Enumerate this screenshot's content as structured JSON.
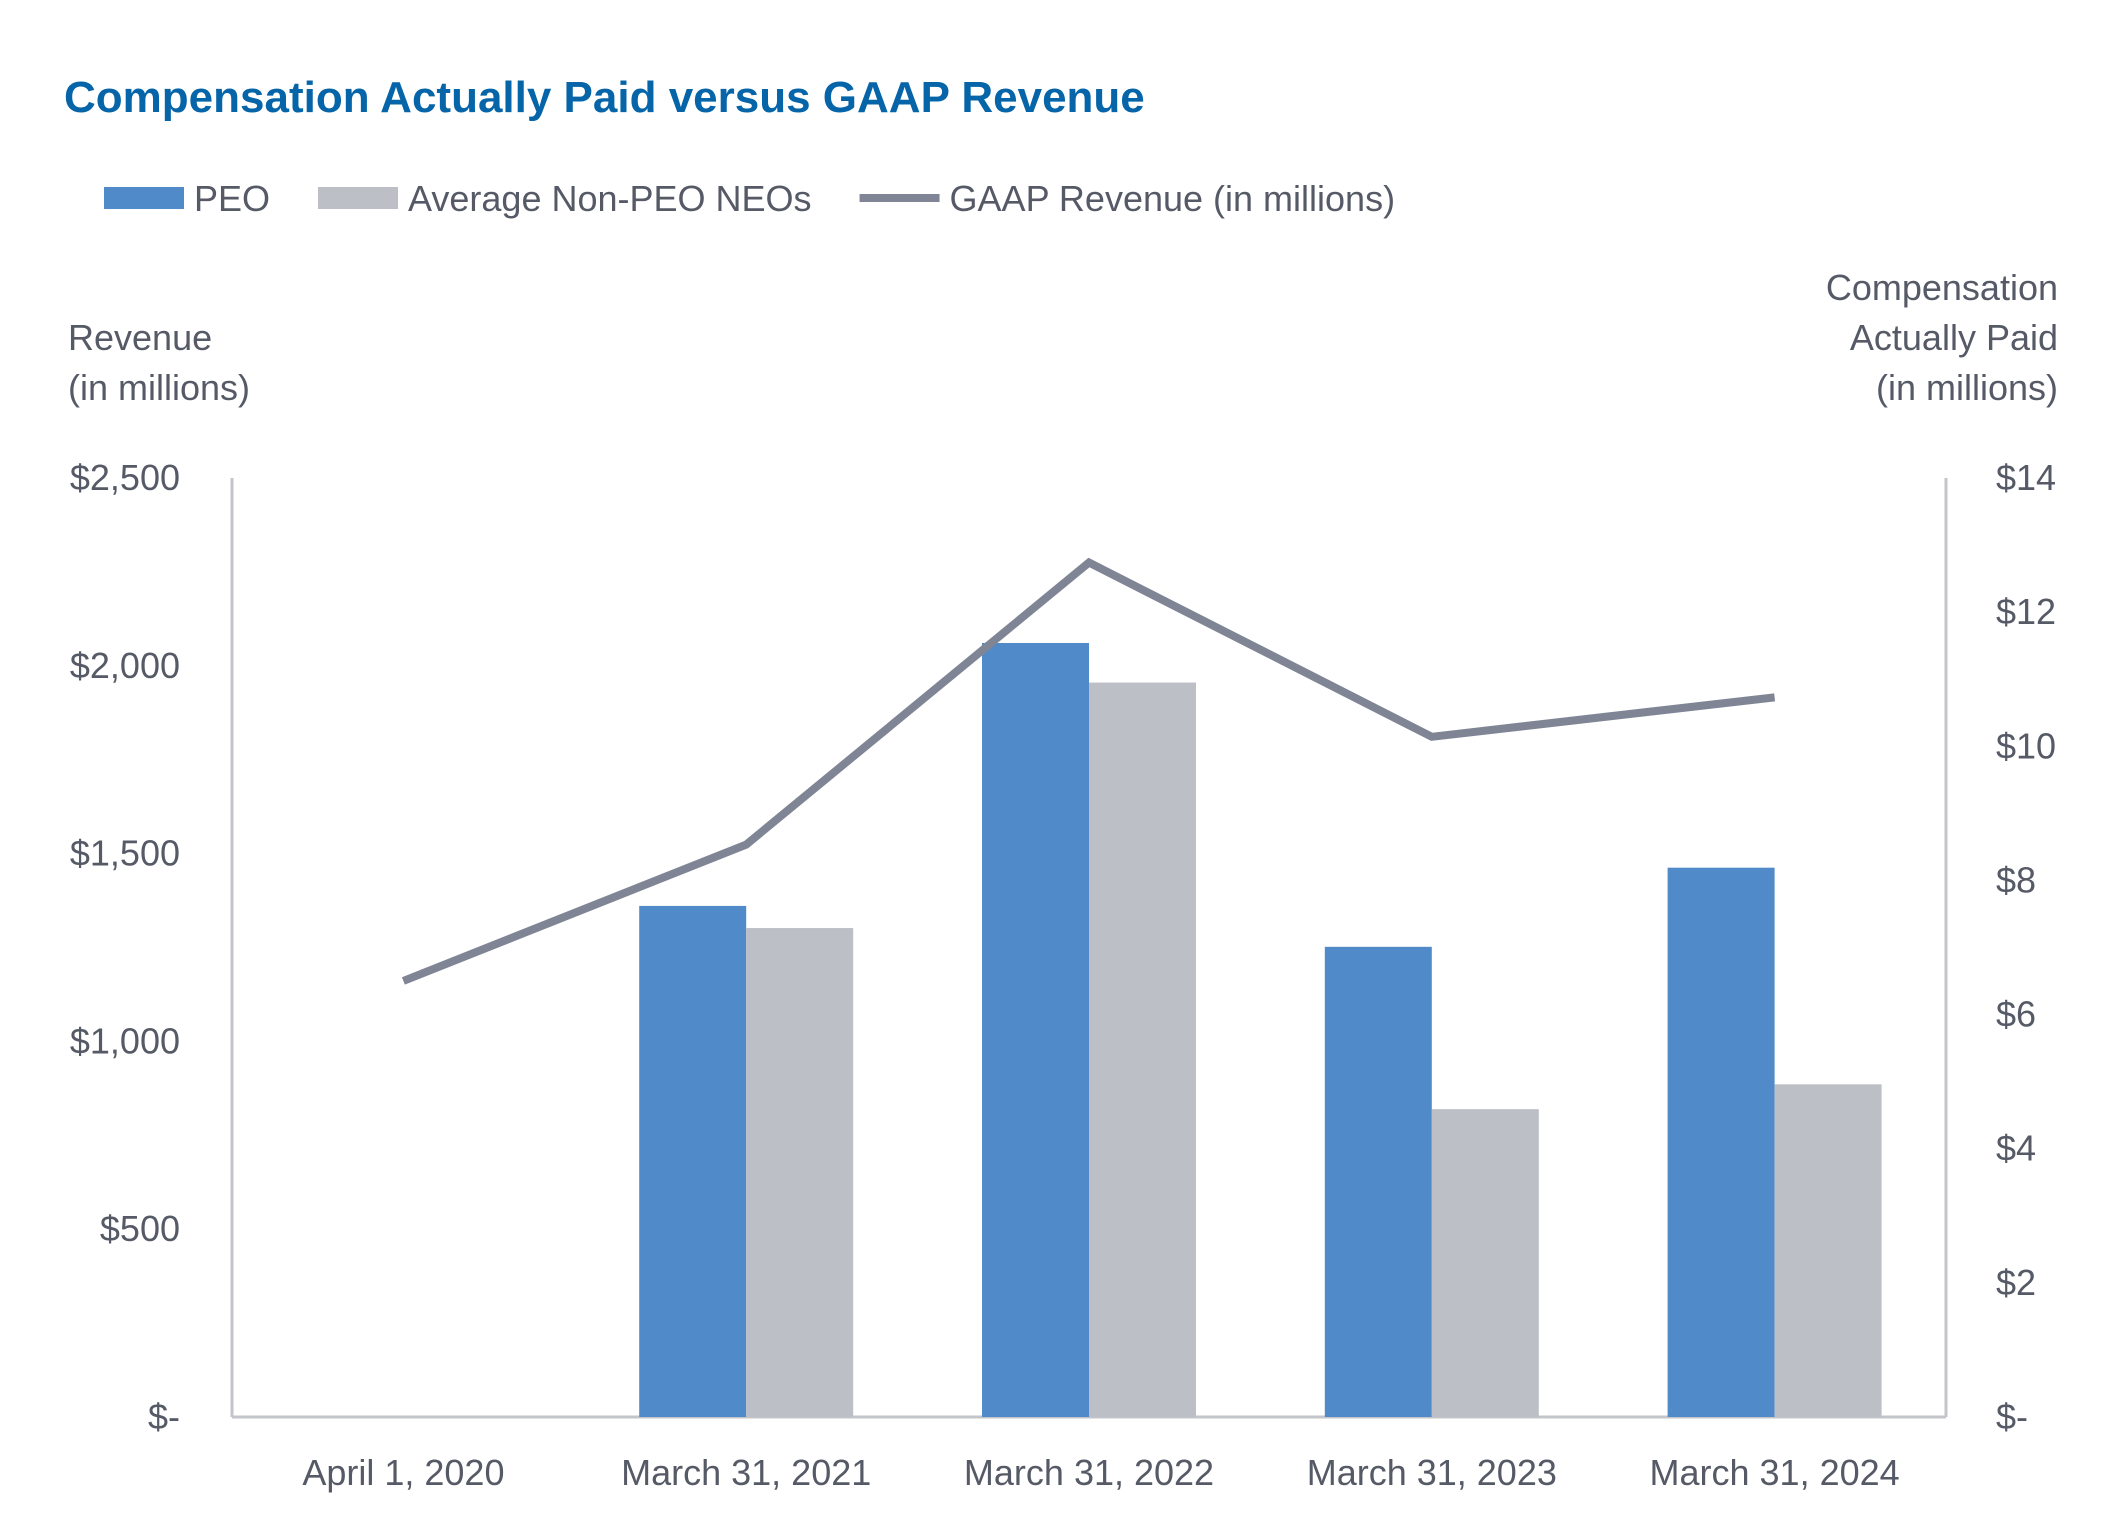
{
  "chart_data": {
    "type": "bar+line",
    "title": "Compensation Actually Paid versus GAAP Revenue",
    "categories": [
      "April 1, 2020",
      "March 31, 2021",
      "March 31, 2022",
      "March 31, 2023",
      "March 31, 2024"
    ],
    "series": [
      {
        "name": "PEO",
        "type": "bar",
        "axis": "right",
        "color": "#508ac8",
        "values": [
          null,
          7.62,
          11.54,
          7.01,
          8.19
        ]
      },
      {
        "name": "Average Non-PEO NEOs",
        "type": "bar",
        "axis": "right",
        "color": "#bcbfc6",
        "values": [
          null,
          7.29,
          10.95,
          4.59,
          4.96
        ]
      },
      {
        "name": "GAAP Revenue (in millions)",
        "type": "line",
        "axis": "left",
        "color": "#7f8595",
        "values": [
          1161,
          1524,
          2275,
          1811,
          1916
        ]
      }
    ],
    "y_left": {
      "label_line1": "Revenue",
      "label_line2": "(in millions)",
      "ylim": [
        0,
        2500
      ],
      "ticks": [
        0,
        500,
        1000,
        1500,
        2000,
        2500
      ],
      "tick_labels": [
        "$-",
        "$500",
        "$1,000",
        "$1,500",
        "$2,000",
        "$2,500"
      ]
    },
    "y_right": {
      "label_line1": "Compensation",
      "label_line2": "Actually Paid",
      "label_line3": "(in millions)",
      "ylim": [
        0,
        14
      ],
      "ticks": [
        0,
        2,
        4,
        6,
        8,
        10,
        12,
        14
      ],
      "tick_labels": [
        "$-",
        "$2",
        "$4",
        "$6",
        "$8",
        "$10",
        "$12",
        "$14"
      ]
    },
    "grid": false,
    "legend_position": "top-left"
  }
}
